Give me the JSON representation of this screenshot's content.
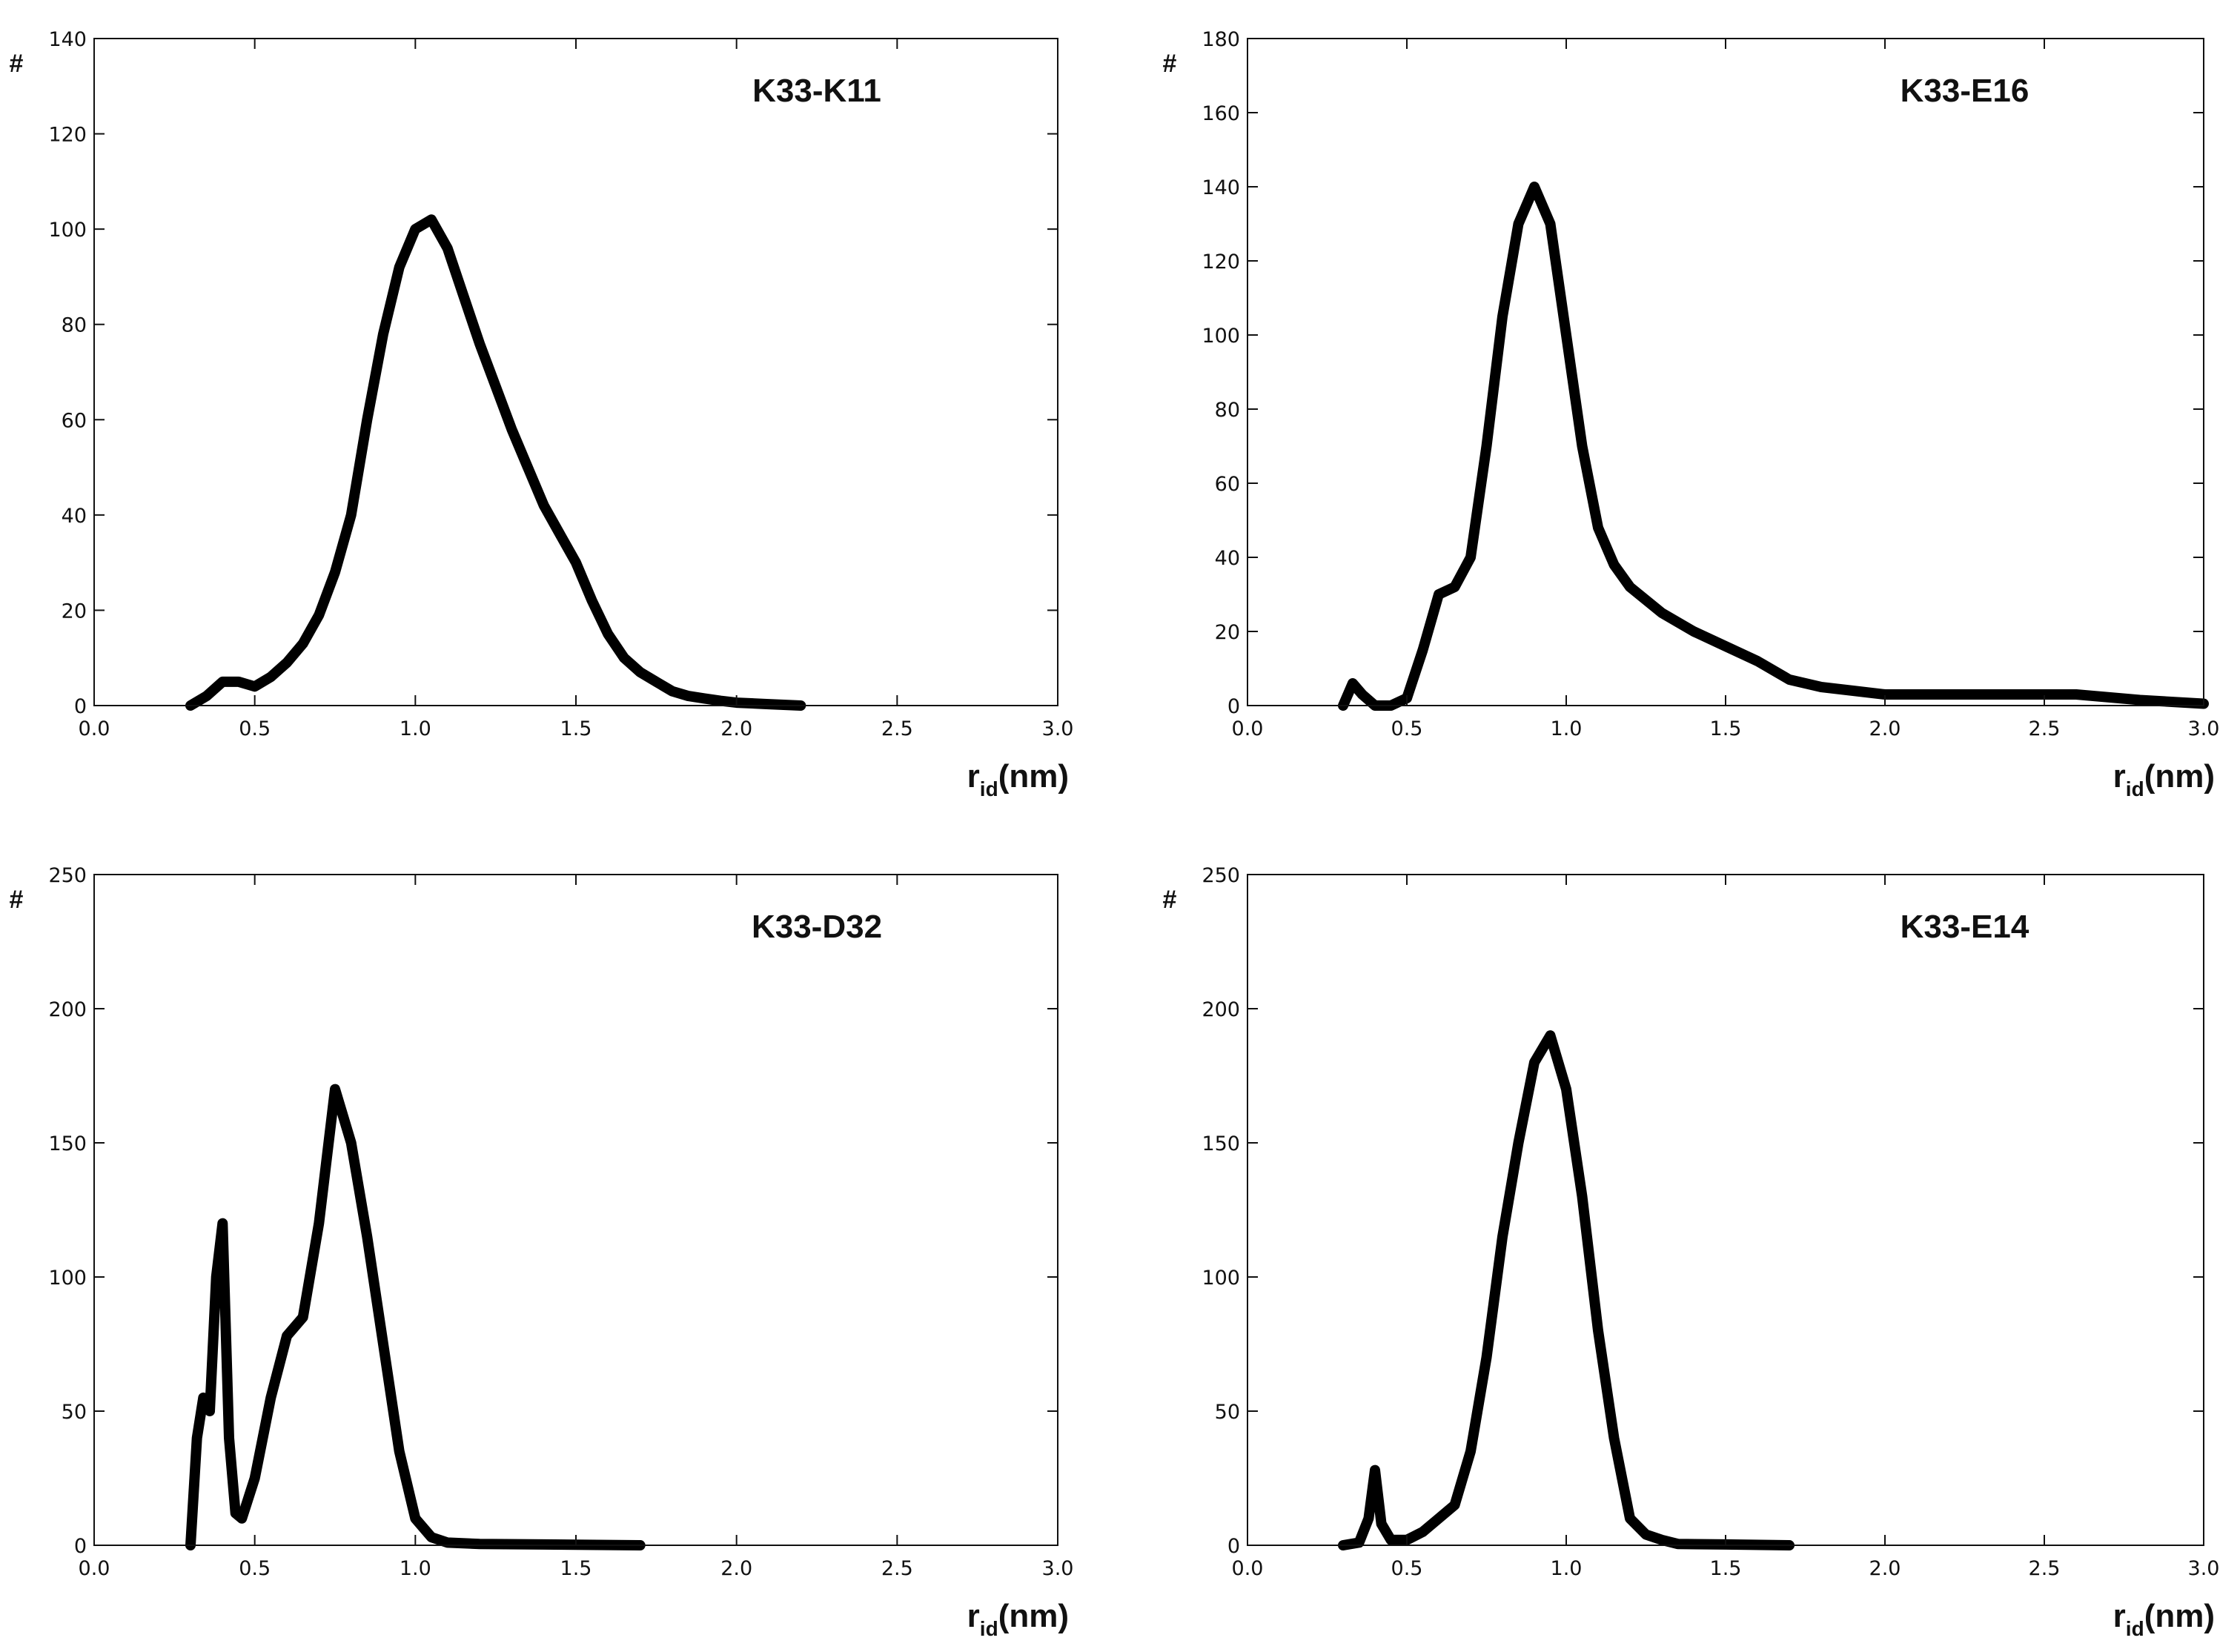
{
  "chart_data": [
    {
      "type": "line",
      "title": "K33-K11",
      "ylabel": "#",
      "xlabel_main": "r",
      "xlabel_sub": "id",
      "xlabel_unit": "(nm)",
      "xlim": [
        0.0,
        3.0
      ],
      "ylim": [
        0,
        140
      ],
      "xticks": [
        "0.0",
        "0.5",
        "1.0",
        "1.5",
        "2.0",
        "2.5",
        "3.0"
      ],
      "yticks": [
        "0",
        "20",
        "40",
        "60",
        "80",
        "100",
        "120",
        "140"
      ],
      "grid": false,
      "series": [
        {
          "color": "#000000",
          "x": [
            0.3,
            0.35,
            0.4,
            0.45,
            0.5,
            0.55,
            0.6,
            0.65,
            0.7,
            0.75,
            0.8,
            0.85,
            0.9,
            0.95,
            1.0,
            1.05,
            1.1,
            1.15,
            1.2,
            1.25,
            1.3,
            1.35,
            1.4,
            1.45,
            1.5,
            1.55,
            1.6,
            1.65,
            1.7,
            1.75,
            1.8,
            1.85,
            1.9,
            1.95,
            2.0,
            2.1,
            2.2
          ],
          "y": [
            0,
            2,
            5,
            5,
            4,
            6,
            9,
            13,
            19,
            28,
            40,
            60,
            78,
            92,
            100,
            102,
            96,
            86,
            76,
            67,
            58,
            50,
            42,
            36,
            30,
            22,
            15,
            10,
            7,
            5,
            3,
            2,
            1.5,
            1,
            0.6,
            0.3,
            0
          ]
        }
      ]
    },
    {
      "type": "line",
      "title": "K33-E16",
      "ylabel": "#",
      "xlabel_main": "r",
      "xlabel_sub": "id",
      "xlabel_unit": "(nm)",
      "xlim": [
        0.0,
        3.0
      ],
      "ylim": [
        0,
        180
      ],
      "xticks": [
        "0.0",
        "0.5",
        "1.0",
        "1.5",
        "2.0",
        "2.5",
        "3.0"
      ],
      "yticks": [
        "0",
        "20",
        "40",
        "60",
        "80",
        "100",
        "120",
        "140",
        "160",
        "180"
      ],
      "grid": false,
      "series": [
        {
          "color": "#000000",
          "x": [
            0.3,
            0.33,
            0.36,
            0.4,
            0.45,
            0.5,
            0.55,
            0.6,
            0.65,
            0.7,
            0.75,
            0.8,
            0.85,
            0.9,
            0.95,
            1.0,
            1.05,
            1.1,
            1.15,
            1.2,
            1.3,
            1.4,
            1.5,
            1.6,
            1.7,
            1.8,
            1.9,
            2.0,
            2.2,
            2.4,
            2.6,
            2.8,
            3.0
          ],
          "y": [
            0,
            6,
            3,
            0,
            0,
            2,
            15,
            30,
            32,
            40,
            70,
            105,
            130,
            140,
            130,
            100,
            70,
            48,
            38,
            32,
            25,
            20,
            16,
            12,
            7,
            5,
            4,
            3,
            3,
            3,
            3,
            1.5,
            0.5
          ]
        }
      ]
    },
    {
      "type": "line",
      "title": "K33-D32",
      "ylabel": "#",
      "xlabel_main": "r",
      "xlabel_sub": "id",
      "xlabel_unit": "(nm)",
      "xlim": [
        0.0,
        3.0
      ],
      "ylim": [
        0,
        250
      ],
      "xticks": [
        "0.0",
        "0.5",
        "1.0",
        "1.5",
        "2.0",
        "2.5",
        "3.0"
      ],
      "yticks": [
        "0",
        "50",
        "100",
        "150",
        "200",
        "250"
      ],
      "grid": false,
      "series": [
        {
          "color": "#000000",
          "x": [
            0.3,
            0.32,
            0.34,
            0.36,
            0.38,
            0.4,
            0.42,
            0.44,
            0.46,
            0.5,
            0.55,
            0.6,
            0.65,
            0.7,
            0.75,
            0.8,
            0.85,
            0.9,
            0.95,
            1.0,
            1.05,
            1.1,
            1.2,
            1.4,
            1.7
          ],
          "y": [
            0,
            40,
            55,
            50,
            100,
            120,
            40,
            12,
            10,
            25,
            55,
            78,
            85,
            120,
            170,
            150,
            115,
            75,
            35,
            10,
            3,
            1,
            0.5,
            0.3,
            0
          ]
        }
      ]
    },
    {
      "type": "line",
      "title": "K33-E14",
      "ylabel": "#",
      "xlabel_main": "r",
      "xlabel_sub": "id",
      "xlabel_unit": "(nm)",
      "xlim": [
        0.0,
        3.0
      ],
      "ylim": [
        0,
        250
      ],
      "xticks": [
        "0.0",
        "0.5",
        "1.0",
        "1.5",
        "2.0",
        "2.5",
        "3.0"
      ],
      "yticks": [
        "0",
        "50",
        "100",
        "150",
        "200",
        "250"
      ],
      "grid": false,
      "series": [
        {
          "color": "#000000",
          "x": [
            0.3,
            0.35,
            0.38,
            0.4,
            0.42,
            0.45,
            0.5,
            0.55,
            0.6,
            0.65,
            0.7,
            0.75,
            0.8,
            0.85,
            0.9,
            0.95,
            1.0,
            1.05,
            1.1,
            1.15,
            1.2,
            1.25,
            1.3,
            1.35,
            1.5,
            1.7
          ],
          "y": [
            0,
            1,
            10,
            28,
            8,
            2,
            2,
            5,
            10,
            15,
            35,
            70,
            115,
            150,
            180,
            190,
            170,
            130,
            80,
            40,
            10,
            4,
            2,
            0.5,
            0.3,
            0
          ]
        }
      ]
    }
  ]
}
